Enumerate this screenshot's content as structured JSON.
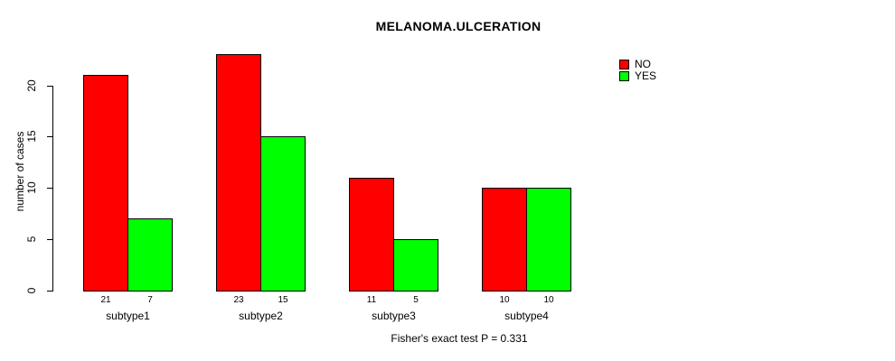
{
  "chart_data": {
    "type": "bar",
    "title": "MELANOMA.ULCERATION",
    "xlabel": "",
    "ylabel": "number of cases",
    "categories": [
      "subtype1",
      "subtype2",
      "subtype3",
      "subtype4"
    ],
    "series": [
      {
        "name": "NO",
        "color": "#ff0000",
        "values": [
          21,
          23,
          11,
          10
        ]
      },
      {
        "name": "YES",
        "color": "#00ff00",
        "values": [
          7,
          15,
          5,
          10
        ]
      }
    ],
    "yticks": [
      0,
      5,
      10,
      15,
      20
    ],
    "ylim": [
      0,
      23
    ],
    "grid": false,
    "legend_position": "top-right",
    "values_shown_under_bars": true,
    "annotation": "Fisher's exact test P = 0.331"
  },
  "colors": {
    "background": "#ffffff",
    "axis": "#000000",
    "text": "#000000",
    "bar_border": "#000000"
  }
}
